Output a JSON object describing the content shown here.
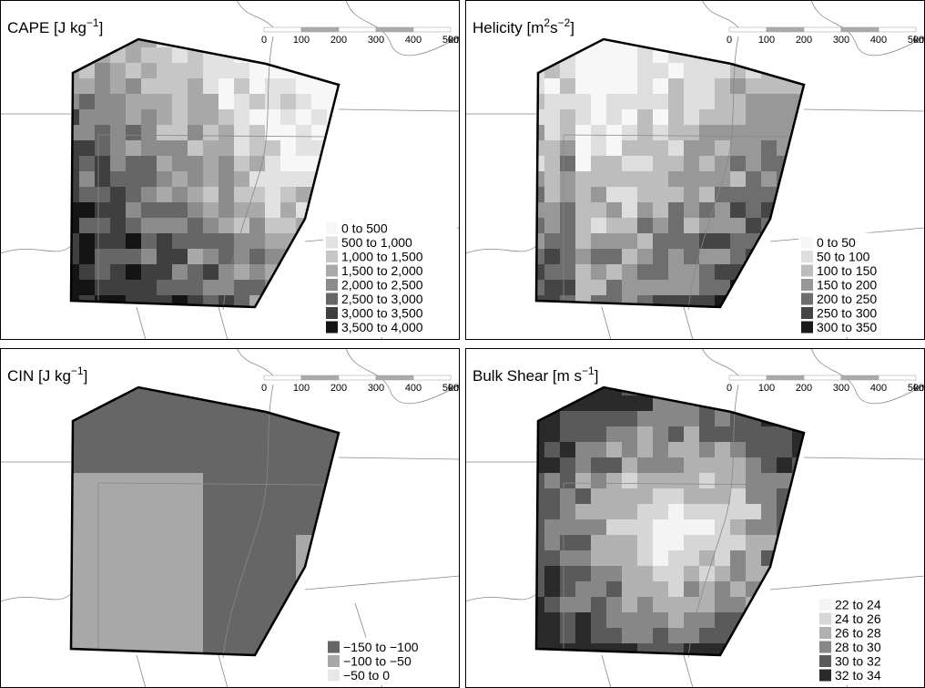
{
  "panels": [
    {
      "title": [
        {
          "text": "CAPE [J kg",
          "sup": false
        },
        {
          "text": "−1",
          "sup": true
        },
        {
          "text": "]",
          "sup": false
        }
      ],
      "scale_bar": {
        "labels": [
          "0",
          "100",
          "200",
          "300",
          "400",
          "500"
        ],
        "unit": "km"
      },
      "legend": [
        {
          "label": "0 to 500",
          "color": "#f7f7f7"
        },
        {
          "label": "500 to 1,000",
          "color": "#e2e2e2"
        },
        {
          "label": "1,000 to 1,500",
          "color": "#c6c6c6"
        },
        {
          "label": "1,500 to 2,000",
          "color": "#a9a9a9"
        },
        {
          "label": "2,000 to 2,500",
          "color": "#8c8c8c"
        },
        {
          "label": "2,500 to 3,000",
          "color": "#666666"
        },
        {
          "label": "3,000 to 3,500",
          "color": "#3f3f3f"
        },
        {
          "label": "3,500 to 4,000",
          "color": "#141414"
        }
      ]
    },
    {
      "title": [
        {
          "text": "Helicity [m",
          "sup": false
        },
        {
          "text": "2",
          "sup": true
        },
        {
          "text": "s",
          "sup": false
        },
        {
          "text": "−2",
          "sup": true
        },
        {
          "text": "]",
          "sup": false
        }
      ],
      "scale_bar": {
        "labels": [
          "0",
          "100",
          "200",
          "300",
          "400",
          "500"
        ],
        "unit": "km"
      },
      "legend": [
        {
          "label": "0 to 50",
          "color": "#f7f7f7"
        },
        {
          "label": "50 to 100",
          "color": "#dedede"
        },
        {
          "label": "100 to 150",
          "color": "#bdbdbd"
        },
        {
          "label": "150 to 200",
          "color": "#989898"
        },
        {
          "label": "200 to 250",
          "color": "#6e6e6e"
        },
        {
          "label": "250 to 300",
          "color": "#454545"
        },
        {
          "label": "300 to 350",
          "color": "#1a1a1a"
        }
      ]
    },
    {
      "title": [
        {
          "text": "CIN [J kg",
          "sup": false
        },
        {
          "text": "−1",
          "sup": true
        },
        {
          "text": "]",
          "sup": false
        }
      ],
      "scale_bar": {
        "labels": [
          "0",
          "100",
          "200",
          "300",
          "400",
          "500"
        ],
        "unit": "km"
      },
      "legend": [
        {
          "label": "−150 to −100",
          "color": "#666666"
        },
        {
          "label": "−100 to −50",
          "color": "#a8a8a8"
        },
        {
          "label": "−50 to 0",
          "color": "#e8e8e8"
        }
      ]
    },
    {
      "title": [
        {
          "text": "Bulk Shear [m s",
          "sup": false
        },
        {
          "text": "−1",
          "sup": true
        },
        {
          "text": "]",
          "sup": false
        }
      ],
      "scale_bar": {
        "labels": [
          "0",
          "100",
          "200",
          "300",
          "400",
          "500"
        ],
        "unit": "km"
      },
      "legend": [
        {
          "label": "22 to 24",
          "color": "#f4f4f4"
        },
        {
          "label": "24 to 26",
          "color": "#d6d6d6"
        },
        {
          "label": "26 to 28",
          "color": "#b1b1b1"
        },
        {
          "label": "28 to 30",
          "color": "#878787"
        },
        {
          "label": "30 to 32",
          "color": "#5a5a5a"
        },
        {
          "label": "32 to 34",
          "color": "#2a2a2a"
        }
      ]
    }
  ]
}
